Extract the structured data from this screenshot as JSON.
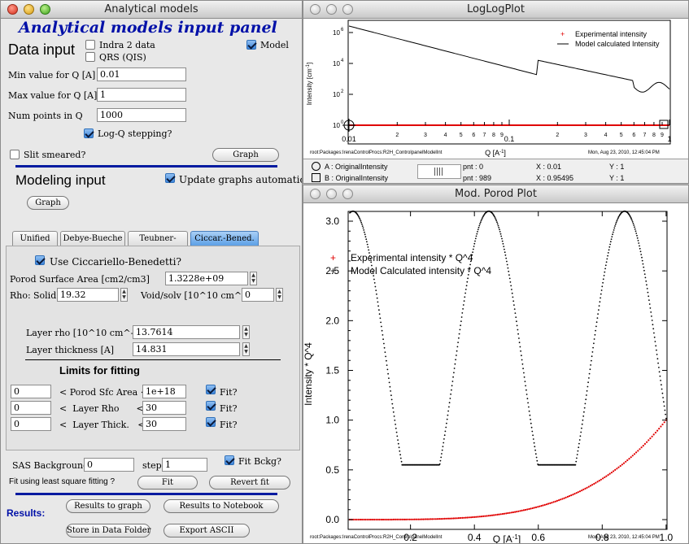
{
  "left": {
    "title": "Analytical models",
    "heading": "Analytical models input panel",
    "data_input": "Data input",
    "indra": "Indra 2 data",
    "qrs": "QRS (QIS)",
    "model": "Model",
    "min_q_label": "Min value for Q [A]",
    "min_q": "0.01",
    "max_q_label": "Max value for Q [A]",
    "max_q": "1",
    "num_points_label": "Num points in Q",
    "num_points": "1000",
    "log_q": "Log-Q stepping?",
    "slit": "Slit smeared?",
    "graph": "Graph",
    "modeling_input": "Modeling input",
    "update_auto": "Update graphs automatically?",
    "graph2": "Graph",
    "tabs": [
      "Unified",
      "Debye-Bueche",
      "Teubner-Strey",
      "Ciccar.-Bened."
    ],
    "use_cb": "Use Ciccariello-Benedetti?",
    "porod_label": "Porod Surface Area [cm2/cm3]",
    "porod": "1.3228e+09",
    "rho_label": "Rho:",
    "solid_label": "Solid",
    "solid": "19.32",
    "void_label": "Void/solv [10^10 cm^-2]",
    "void": "0",
    "layer_rho_label": "Layer rho [10^10 cm^-2]",
    "layer_rho": "13.7614",
    "layer_thick_label": "Layer thickness [A]",
    "layer_thick": "14.831",
    "limits": "Limits for fitting",
    "lim_rows": [
      {
        "low": "0",
        "name": "<  Porod Sfc Area <",
        "high": "1e+18",
        "fit": "Fit?"
      },
      {
        "low": "0",
        "name": "<  Layer Rho      <",
        "high": "30",
        "fit": "Fit?"
      },
      {
        "low": "0",
        "name": "<  Layer Thick.   <",
        "high": "30",
        "fit": "Fit?"
      }
    ],
    "bkg_label": "SAS Background",
    "bkg": "0",
    "step_label": "step",
    "step": "1",
    "fit_bkg": "Fit Bckg?",
    "fit_question": "Fit using least square fitting ?",
    "fit": "Fit",
    "revert": "Revert fit",
    "results": "Results:",
    "results_graph": "Results to graph",
    "results_notebook": "Results to Notebook",
    "store": "Store in Data Folder",
    "export": "Export ASCII"
  },
  "loglog": {
    "title": "LogLogPlot",
    "legend": [
      "Experimental intensity",
      "Model calculated Intensity"
    ],
    "ylabel": "Intensity [cm",
    "ylabel_sup": "-1",
    "ylabel_end": "]",
    "xlabel": "Q [A",
    "xlabel_sup": "-1",
    "xlabel_end": "]",
    "yticks": [
      "10",
      "10",
      "10",
      "10",
      "10"
    ],
    "yexp": [
      "6",
      "4",
      "2",
      "0",
      "0"
    ],
    "xmajor": [
      "0.01",
      "0.1",
      "1"
    ],
    "xminor": [
      "2",
      "3",
      "4",
      "5",
      "6",
      "7",
      "8",
      "9",
      "2",
      "3",
      "4",
      "5",
      "6",
      "7",
      "8",
      "9"
    ],
    "footer_left": "root:Packages:IrenaControlProcs:R2H_ControlpanelModelInt",
    "footer_right": "Mon, Aug 23, 2010, 12:45:04 PM",
    "cursor_a": "A : OriginalIntensity",
    "cursor_b": "B : OriginalIntensity",
    "pnt_a": "pnt : 0",
    "pnt_b": "pnt : 989",
    "x_a": "X : 0.01",
    "x_b": "X : 0.95495",
    "y_a": "Y : 1",
    "y_b": "Y : 1"
  },
  "porod": {
    "title": "Mod. Porod Plot",
    "legend": [
      "Experimental intensity * Q^4",
      "Model Calculated intensity * Q^4"
    ],
    "ylabel": "Intensity * Q^4",
    "xlabel": "Q [A",
    "xlabel_sup": "-1",
    "xlabel_end": "]",
    "yticks": [
      "0.0",
      "0.5",
      "1.0",
      "1.5",
      "2.0",
      "2.5",
      "3.0"
    ],
    "xticks": [
      "0.2",
      "0.4",
      "0.6",
      "0.8",
      "1.0"
    ],
    "footer_left": "root:Packages:IrenaControlProcs:R2H_ControlpanelModelInt",
    "footer_right": "Mon, Aug 23, 2010, 12:45:04 PM"
  },
  "colors": {
    "experimental": "#e00000",
    "model": "#000000",
    "accent": "#001aa0"
  }
}
